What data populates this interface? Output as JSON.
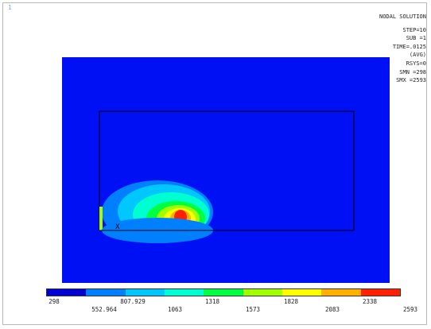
{
  "window": {
    "number": "1"
  },
  "info": {
    "title": "NODAL SOLUTION",
    "lines": [
      "STEP=10",
      "SUB =1",
      "TIME=.0125",
      "(AVG)",
      "RSYS=0",
      "SMN =298",
      "SMX =2593"
    ]
  },
  "plot": {
    "background_color": "#0010f5",
    "node_marker": "X",
    "contour_colors": [
      "#0000d4",
      "#0080ff",
      "#00c8ff",
      "#00ffd0",
      "#00ff40",
      "#a0ff00",
      "#ffff00",
      "#ffb000",
      "#ff2000"
    ]
  },
  "legend": {
    "colors": [
      "#0000d4",
      "#0080ff",
      "#00c8ff",
      "#00ffd0",
      "#00ff40",
      "#a0ff00",
      "#ffff00",
      "#ffb000",
      "#ff2000"
    ],
    "labels_top": [
      "298",
      "807.929",
      "1318",
      "1828",
      "2338"
    ],
    "labels_bottom": [
      "552.964",
      "1063",
      "1573",
      "2083",
      "2593"
    ]
  }
}
